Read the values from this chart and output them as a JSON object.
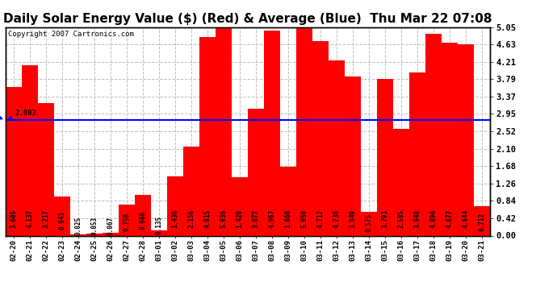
{
  "title": "Daily Solar Energy Value ($) (Red) & Average (Blue)  Thu Mar 22 07:08",
  "copyright": "Copyright 2007 Cartronics.com",
  "average": 2.803,
  "categories": [
    "02-20",
    "02-21",
    "02-22",
    "02-23",
    "02-24",
    "02-25",
    "02-26",
    "02-27",
    "02-28",
    "03-01",
    "03-02",
    "03-03",
    "03-04",
    "03-05",
    "03-06",
    "03-07",
    "03-08",
    "03-09",
    "03-10",
    "03-11",
    "03-12",
    "03-13",
    "03-14",
    "03-15",
    "03-16",
    "03-17",
    "03-18",
    "03-19",
    "03-20",
    "03-21"
  ],
  "values": [
    3.605,
    4.137,
    3.217,
    0.941,
    0.025,
    0.053,
    0.067,
    0.758,
    0.986,
    0.135,
    1.436,
    2.156,
    4.815,
    5.036,
    1.42,
    3.077,
    4.967,
    1.666,
    5.05,
    4.712,
    4.236,
    3.849,
    0.575,
    3.791,
    2.585,
    3.948,
    4.896,
    4.677,
    4.644,
    0.712
  ],
  "bar_color": "#ff0000",
  "line_color": "#0000ff",
  "bg_color": "#ffffff",
  "grid_color": "#c0c0c0",
  "ylim": [
    0,
    5.05
  ],
  "yticks": [
    0.0,
    0.42,
    0.84,
    1.26,
    1.68,
    2.1,
    2.52,
    2.95,
    3.37,
    3.79,
    4.21,
    4.63,
    5.05
  ],
  "avg_label": "2.803",
  "title_fontsize": 11,
  "bar_label_fontsize": 5.5,
  "tick_fontsize": 7.5,
  "copyright_fontsize": 6.5
}
